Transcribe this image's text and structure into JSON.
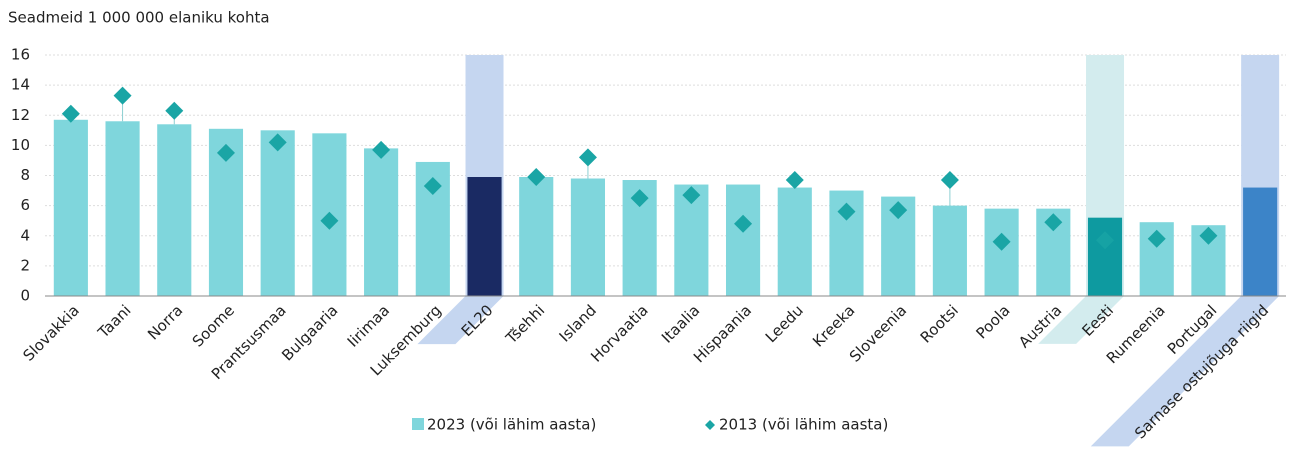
{
  "chart_data": {
    "type": "bar_diamond",
    "y_label": "Seadmeid 1 000 000 elaniku kohta",
    "categories": [
      "Slovakkia",
      "Taani",
      "Norra",
      "Soome",
      "Prantsusmaa",
      "Bulgaaria",
      "Iirimaa",
      "Luksemburg",
      "EL20",
      "Tšehhi",
      "Island",
      "Horvaatia",
      "Itaalia",
      "Hispaania",
      "Leedu",
      "Kreeka",
      "Sloveenia",
      "Rootsi",
      "Poola",
      "Austria",
      "Eesti",
      "Rumeenia",
      "Portugal",
      "Sarnase ostujõuga riigid"
    ],
    "series": [
      {
        "name": "2023 (või lähim aasta)",
        "color": "#7fd6dc",
        "colors": [
          "#7fd6dc",
          "#7fd6dc",
          "#7fd6dc",
          "#7fd6dc",
          "#7fd6dc",
          "#7fd6dc",
          "#7fd6dc",
          "#7fd6dc",
          "#1a2a63",
          "#7fd6dc",
          "#7fd6dc",
          "#7fd6dc",
          "#7fd6dc",
          "#7fd6dc",
          "#7fd6dc",
          "#7fd6dc",
          "#7fd6dc",
          "#7fd6dc",
          "#7fd6dc",
          "#7fd6dc",
          "#0e9aa0",
          "#7fd6dc",
          "#7fd6dc",
          "#3c84c8"
        ],
        "values": [
          11.7,
          11.6,
          11.4,
          11.1,
          11.0,
          10.8,
          9.8,
          8.9,
          7.9,
          7.9,
          7.8,
          7.7,
          7.4,
          7.4,
          7.2,
          7.0,
          6.6,
          6.0,
          5.8,
          5.8,
          5.2,
          4.9,
          4.7,
          7.2
        ]
      },
      {
        "name": "2013 (või lähim aasta)",
        "color": "#1aa5a5",
        "values": [
          12.1,
          13.3,
          12.3,
          9.5,
          10.2,
          5.0,
          9.7,
          7.3,
          null,
          7.9,
          9.2,
          6.5,
          6.7,
          4.8,
          7.7,
          5.6,
          5.7,
          7.7,
          3.6,
          4.9,
          3.7,
          3.8,
          4.0,
          null
        ]
      }
    ],
    "highlight_colors": [
      null,
      null,
      null,
      null,
      null,
      null,
      null,
      null,
      "#c5d6f0",
      null,
      null,
      null,
      null,
      null,
      null,
      null,
      null,
      null,
      null,
      null,
      "#d3ecee",
      null,
      null,
      "#c5d6f0"
    ],
    "ylim": [
      0,
      16
    ],
    "yticks": [
      0,
      2,
      4,
      6,
      8,
      10,
      12,
      14,
      16
    ],
    "grid": true
  }
}
